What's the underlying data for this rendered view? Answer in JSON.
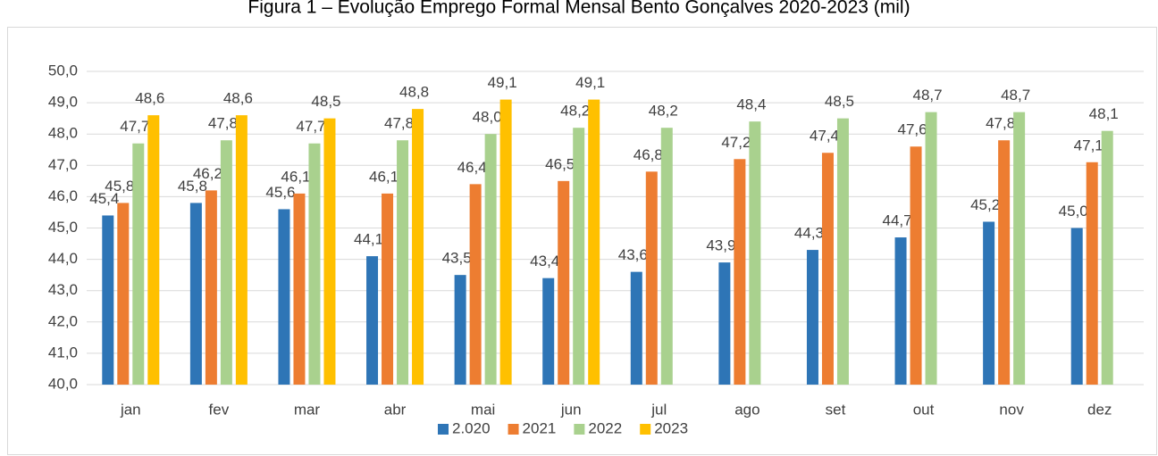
{
  "chart_data": {
    "type": "bar",
    "title": "Figura 1 – Evolução Emprego Formal Mensal Bento Gonçalves 2020-2023 (mil)",
    "categories": [
      "jan",
      "fev",
      "mar",
      "abr",
      "mai",
      "jun",
      "jul",
      "ago",
      "set",
      "out",
      "nov",
      "dez"
    ],
    "series": [
      {
        "name": "2.020",
        "color": "#2e75b6",
        "values": [
          45.4,
          45.8,
          45.6,
          44.1,
          43.5,
          43.4,
          43.6,
          43.9,
          44.3,
          44.7,
          45.2,
          45.0
        ],
        "value_labels": [
          "45,4",
          "45,8",
          "45,6",
          "44,1",
          "43,5",
          "43,4",
          "43,6",
          "43,9",
          "44,3",
          "44,7",
          "45,2",
          "45,0"
        ]
      },
      {
        "name": "2021",
        "color": "#ed7d31",
        "values": [
          45.8,
          46.2,
          46.1,
          46.1,
          46.4,
          46.5,
          46.8,
          47.2,
          47.4,
          47.6,
          47.8,
          47.1
        ],
        "value_labels": [
          "45,8",
          "46,2",
          "46,1",
          "46,1",
          "46,4",
          "46,5",
          "46,8",
          "47,2",
          "47,4",
          "47,6",
          "47,8",
          "47,1"
        ]
      },
      {
        "name": "2022",
        "color": "#a9d18e",
        "values": [
          47.7,
          47.8,
          47.7,
          47.8,
          48.0,
          48.2,
          48.2,
          48.4,
          48.5,
          48.7,
          48.7,
          48.1
        ],
        "value_labels": [
          "47,7",
          "47,8",
          "47,7",
          "47,8",
          "48,0",
          "48,2",
          "48,2",
          "48,4",
          "48,5",
          "48,7",
          "48,7",
          "48,1"
        ]
      },
      {
        "name": "2023",
        "color": "#ffc000",
        "values": [
          48.6,
          48.6,
          48.5,
          48.8,
          49.1,
          49.1,
          null,
          null,
          null,
          null,
          null,
          null
        ],
        "value_labels": [
          "48,6",
          "48,6",
          "48,5",
          "48,8",
          "49,1",
          "49,1",
          null,
          null,
          null,
          null,
          null,
          null
        ]
      }
    ],
    "ylim": [
      40,
      50
    ],
    "yticks": [
      {
        "value": 40,
        "label": "40,0"
      },
      {
        "value": 41,
        "label": "41,0"
      },
      {
        "value": 42,
        "label": "42,0"
      },
      {
        "value": 43,
        "label": "43,0"
      },
      {
        "value": 44,
        "label": "44,0"
      },
      {
        "value": 45,
        "label": "45,0"
      },
      {
        "value": 46,
        "label": "46,0"
      },
      {
        "value": 47,
        "label": "47,0"
      },
      {
        "value": 48,
        "label": "48,0"
      },
      {
        "value": 49,
        "label": "49,0"
      },
      {
        "value": 50,
        "label": "50,0"
      }
    ],
    "grid": true,
    "legend": "bottom"
  }
}
